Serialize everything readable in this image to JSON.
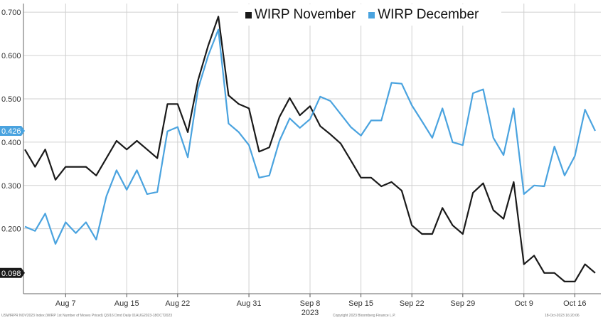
{
  "chart_data": {
    "type": "line",
    "title": "",
    "xlabel": "2023",
    "ylabel": "",
    "ylim": [
      0.05,
      0.72
    ],
    "grid": true,
    "legend_position": "top-center",
    "y_ticks": [
      "0.700",
      "0.600",
      "0.500",
      "0.400",
      "0.300",
      "0.200"
    ],
    "x_ticks": [
      {
        "label": "Aug 7",
        "i": 4
      },
      {
        "label": "Aug 15",
        "i": 10
      },
      {
        "label": "Aug 22",
        "i": 15
      },
      {
        "label": "Aug 31",
        "i": 22
      },
      {
        "label": "Sep 8",
        "i": 28
      },
      {
        "label": "Sep 15",
        "i": 33
      },
      {
        "label": "Sep 22",
        "i": 38
      },
      {
        "label": "Sep 29",
        "i": 43
      },
      {
        "label": "Oct 9",
        "i": 49
      },
      {
        "label": "Oct 16",
        "i": 54
      }
    ],
    "series": [
      {
        "name": "WIRP November",
        "color": "#1a1a1a",
        "last_label": "0.098",
        "values": [
          0.383,
          0.343,
          0.383,
          0.313,
          0.343,
          0.343,
          0.343,
          0.323,
          0.363,
          0.403,
          0.383,
          0.403,
          0.383,
          0.363,
          0.488,
          0.488,
          0.423,
          0.543,
          0.623,
          0.69,
          0.508,
          0.488,
          0.478,
          0.378,
          0.388,
          0.458,
          0.502,
          0.462,
          0.483,
          0.437,
          0.418,
          0.397,
          0.358,
          0.318,
          0.318,
          0.298,
          0.308,
          0.288,
          0.208,
          0.188,
          0.188,
          0.248,
          0.208,
          0.188,
          0.283,
          0.305,
          0.243,
          0.223,
          0.308,
          0.118,
          0.138,
          0.098,
          0.098,
          0.078,
          0.078,
          0.118,
          0.098
        ]
      },
      {
        "name": "WIRP December",
        "color": "#4aa3df",
        "last_label": "0.426",
        "values": [
          0.205,
          0.195,
          0.235,
          0.165,
          0.215,
          0.19,
          0.215,
          0.175,
          0.275,
          0.335,
          0.29,
          0.335,
          0.28,
          0.285,
          0.425,
          0.435,
          0.365,
          0.523,
          0.6,
          0.66,
          0.443,
          0.423,
          0.393,
          0.318,
          0.323,
          0.403,
          0.455,
          0.433,
          0.453,
          0.505,
          0.495,
          0.465,
          0.435,
          0.415,
          0.45,
          0.45,
          0.537,
          0.535,
          0.485,
          0.448,
          0.41,
          0.478,
          0.4,
          0.393,
          0.513,
          0.522,
          0.41,
          0.37,
          0.478,
          0.28,
          0.3,
          0.298,
          0.39,
          0.323,
          0.368,
          0.475,
          0.426
        ]
      }
    ]
  },
  "legend": {
    "items": [
      {
        "label": "WIRP November",
        "color": "#1a1a1a"
      },
      {
        "label": "WIRP December",
        "color": "#4aa3df"
      }
    ]
  },
  "footer": {
    "left": "USWIRPR NOV2023 Index (WIRP 1st Number of Moves Priced) Q3/16 Dmd Daily 01AUG2023-18OCT2023",
    "center": "Copyright 2023 Bloomberg Finance L.P.",
    "right": "18-Oct-2023 16:20:06"
  }
}
